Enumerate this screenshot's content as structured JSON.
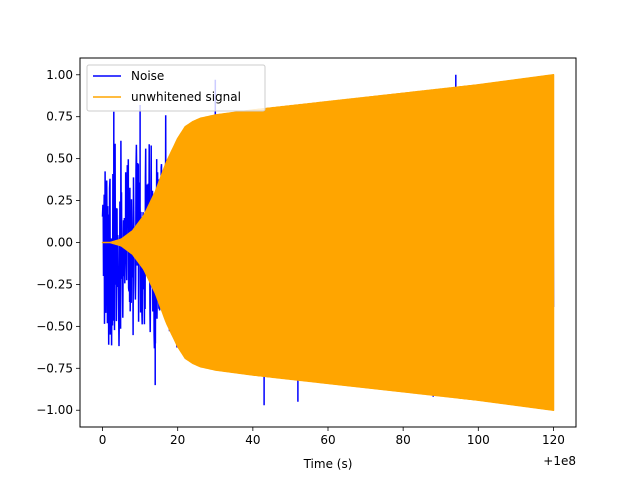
{
  "chart_data": {
    "type": "line",
    "title": "",
    "xlabel": "Time (s)",
    "ylabel": "",
    "x_offset_label": "+1e8",
    "xlim": [
      -6,
      126
    ],
    "ylim": [
      -1.1,
      1.1
    ],
    "x_ticks": [
      0,
      20,
      40,
      60,
      80,
      100,
      120
    ],
    "x_tick_labels": [
      "0",
      "20",
      "40",
      "60",
      "80",
      "100",
      "120"
    ],
    "y_ticks": [
      -1.0,
      -0.75,
      -0.5,
      -0.25,
      0.0,
      0.25,
      0.5,
      0.75,
      1.0
    ],
    "y_tick_labels": [
      "−1.00",
      "−0.75",
      "−0.50",
      "−0.25",
      "0.00",
      "0.25",
      "0.50",
      "0.75",
      "1.00"
    ],
    "grid": false,
    "legend_position": "top-left",
    "series": [
      {
        "name": "Noise",
        "color": "#0000ff",
        "x_range": [
          0,
          120
        ],
        "amplitude_range": [
          -0.97,
          1.0
        ],
        "peaks": [
          {
            "x": 3,
            "y": 0.78
          },
          {
            "x": 10,
            "y": 0.82
          },
          {
            "x": 14,
            "y": -0.85
          },
          {
            "x": 30,
            "y": 0.97
          },
          {
            "x": 43,
            "y": -0.97
          },
          {
            "x": 52,
            "y": -0.95
          },
          {
            "x": 63,
            "y": 0.8
          },
          {
            "x": 94,
            "y": 1.0
          },
          {
            "x": 88,
            "y": -0.92
          }
        ]
      },
      {
        "name": "unwhitened signal",
        "color": "#ffa500",
        "x_range": [
          0,
          120
        ],
        "envelope": {
          "x": [
            0,
            2,
            5,
            8,
            11,
            14,
            17,
            20,
            22,
            24,
            26,
            30,
            40,
            60,
            80,
            100,
            120
          ],
          "y": [
            0.0,
            0.0,
            0.02,
            0.07,
            0.16,
            0.3,
            0.48,
            0.62,
            0.69,
            0.72,
            0.74,
            0.76,
            0.79,
            0.84,
            0.89,
            0.94,
            1.0
          ]
        }
      }
    ]
  }
}
